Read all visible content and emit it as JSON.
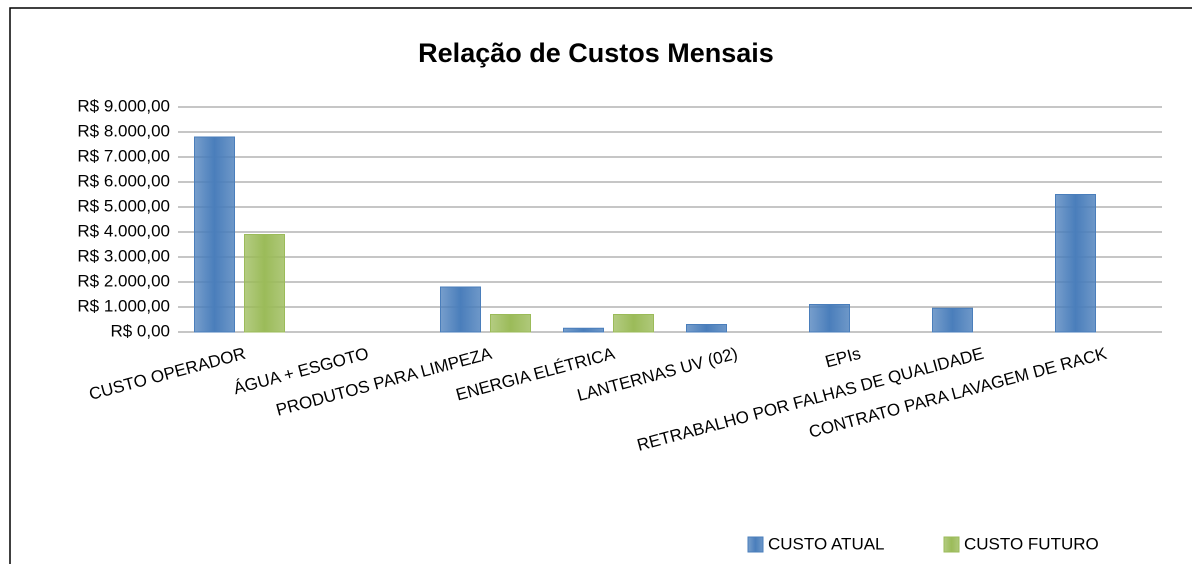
{
  "chart_data": {
    "type": "bar",
    "title": "Relação de Custos Mensais",
    "categories": [
      "CUSTO OPERADOR",
      "ÁGUA + ESGOTO",
      "PRODUTOS PARA LIMPEZA",
      "ENERGIA ELÉTRICA",
      "LANTERNAS UV (02)",
      "EPIs",
      "RETRABALHO POR FALHAS DE QUALIDADE",
      "CONTRATO PARA LAVAGEM DE RACK"
    ],
    "series": [
      {
        "name": "CUSTO ATUAL",
        "color": "#4a7ebb",
        "values": [
          7800,
          0,
          1800,
          150,
          300,
          1100,
          950,
          5500
        ]
      },
      {
        "name": "CUSTO FUTURO",
        "color": "#9bbb59",
        "values": [
          3900,
          0,
          700,
          700,
          0,
          0,
          0,
          0
        ]
      }
    ],
    "ylim": [
      0,
      9000
    ],
    "yticks": [
      {
        "value": 0,
        "label": "R$ 0,00"
      },
      {
        "value": 1000,
        "label": "R$ 1.000,00"
      },
      {
        "value": 2000,
        "label": "R$ 2.000,00"
      },
      {
        "value": 3000,
        "label": "R$ 3.000,00"
      },
      {
        "value": 4000,
        "label": "R$ 4.000,00"
      },
      {
        "value": 5000,
        "label": "R$ 5.000,00"
      },
      {
        "value": 6000,
        "label": "R$ 6.000,00"
      },
      {
        "value": 7000,
        "label": "R$ 7.000,00"
      },
      {
        "value": 8000,
        "label": "R$ 8.000,00"
      },
      {
        "value": 9000,
        "label": "R$ 9.000,00"
      }
    ],
    "grid": true,
    "legend": "bottom"
  }
}
